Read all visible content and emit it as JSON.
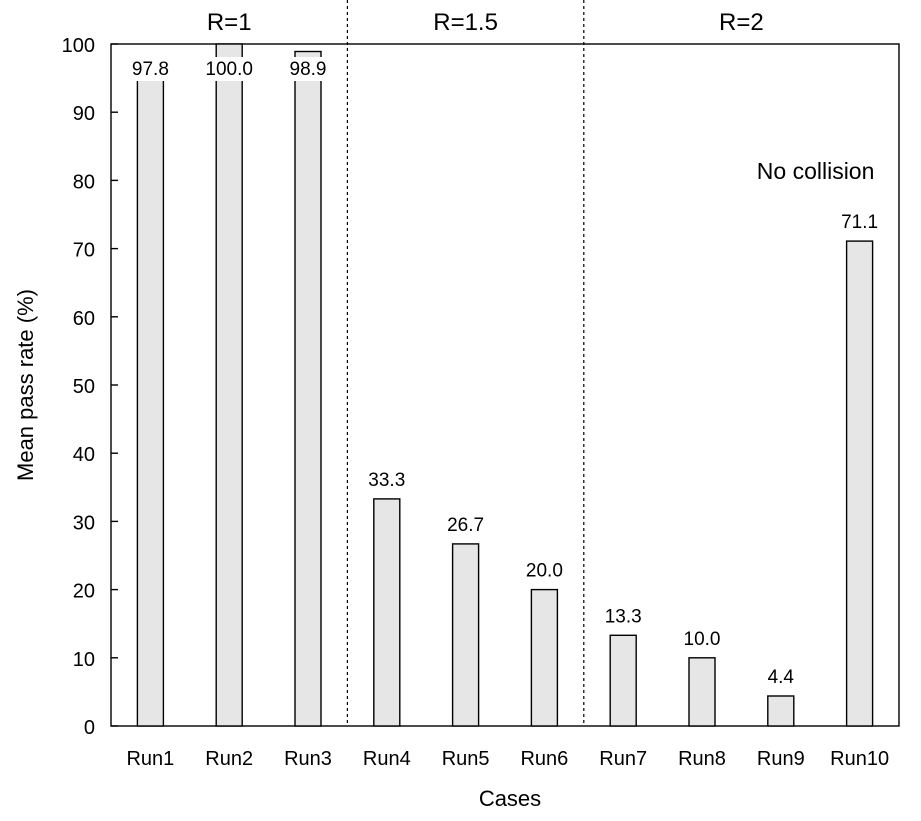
{
  "chart_data": {
    "type": "bar",
    "categories": [
      "Run1",
      "Run2",
      "Run3",
      "Run4",
      "Run5",
      "Run6",
      "Run7",
      "Run8",
      "Run9",
      "Run10"
    ],
    "values": [
      97.8,
      100.0,
      98.9,
      33.3,
      26.7,
      20.0,
      13.3,
      10.0,
      4.4,
      71.1
    ],
    "value_labels": [
      "97.8",
      "100.0",
      "98.9",
      "33.3",
      "26.7",
      "20.0",
      "13.3",
      "10.0",
      "4.4",
      "71.1"
    ],
    "xlabel": "Cases",
    "ylabel": "Mean pass rate (%)",
    "ylim": [
      0,
      100
    ],
    "yticks": [
      0,
      10,
      20,
      30,
      40,
      50,
      60,
      70,
      80,
      90,
      100
    ],
    "grid": false,
    "groups": [
      {
        "label": "R=1",
        "categories": [
          "Run1",
          "Run2",
          "Run3"
        ]
      },
      {
        "label": "R=1.5",
        "categories": [
          "Run4",
          "Run5",
          "Run6"
        ]
      },
      {
        "label": "R=2",
        "categories": [
          "Run7",
          "Run8",
          "Run9",
          "Run10"
        ]
      }
    ],
    "annotations": [
      {
        "text": "No collision",
        "category": "Run10"
      }
    ],
    "colors": {
      "bar_fill": "#e6e6e6",
      "bar_stroke": "#000000"
    }
  }
}
